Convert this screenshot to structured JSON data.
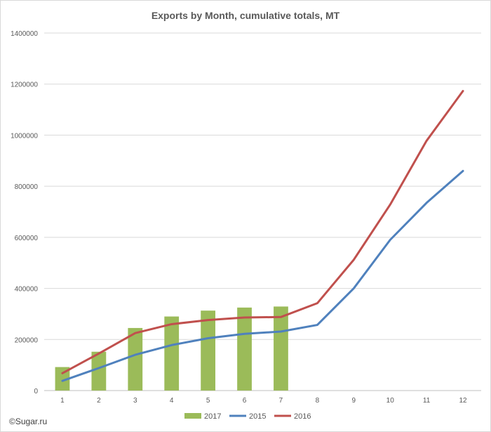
{
  "chart_data": {
    "type": "bar+line",
    "title": "Exports by Month, cumulative totals, MT",
    "categories": [
      "1",
      "2",
      "3",
      "4",
      "5",
      "6",
      "7",
      "8",
      "9",
      "10",
      "11",
      "12"
    ],
    "ylim": [
      0,
      1400000
    ],
    "yticks": [
      0,
      200000,
      400000,
      600000,
      800000,
      1000000,
      1200000,
      1400000
    ],
    "grid": true,
    "legend_position": "bottom",
    "series": [
      {
        "name": "2017",
        "kind": "bar",
        "color": "#9BBB59",
        "values": [
          92000,
          152000,
          245000,
          290000,
          313000,
          325000,
          329000,
          null,
          null,
          null,
          null,
          null
        ]
      },
      {
        "name": "2015",
        "kind": "line",
        "color": "#4F81BD",
        "values": [
          38000,
          88000,
          140000,
          178000,
          205000,
          222000,
          231000,
          257000,
          400000,
          590000,
          735000,
          860000
        ]
      },
      {
        "name": "2016",
        "kind": "line",
        "color": "#C0504D",
        "values": [
          68000,
          145000,
          225000,
          260000,
          276000,
          286000,
          288000,
          342000,
          512000,
          728000,
          978000,
          1173000
        ]
      }
    ]
  },
  "watermark": "©Sugar.ru"
}
